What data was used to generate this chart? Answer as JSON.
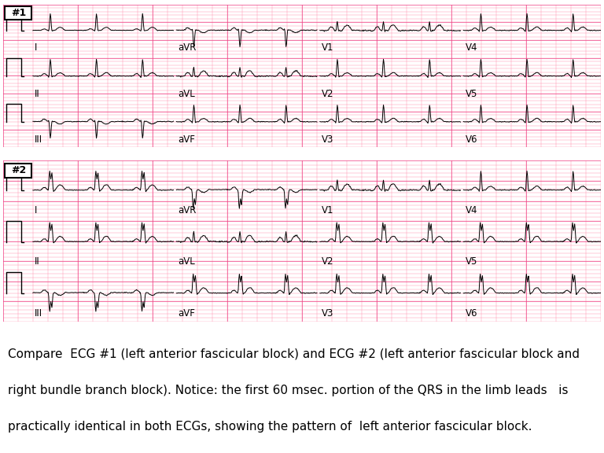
{
  "bg_color": "#FFB0C8",
  "ecg_color": "#000000",
  "grid_minor_color": "#FF85A8",
  "grid_major_color": "#EE4488",
  "white_bg": "#FFFFFF",
  "ecg1_label": "#1",
  "ecg2_label": "#2",
  "caption_line1": "Compare  ECG #1 (left anterior fascicular block) and ECG #2 (left anterior fascicular block and",
  "caption_line2": "right bundle branch block). Notice: the first 60 msec. portion of the QRS in the limb leads   is",
  "caption_line3": "practically identical in both ECGs, showing the pattern of  left anterior fascicular block.",
  "lead_labels_row1": [
    "I",
    "aVR",
    "V1",
    "V4"
  ],
  "lead_labels_row2": [
    "II",
    "aVL",
    "V2",
    "V5"
  ],
  "lead_labels_row3": [
    "III",
    "aVF",
    "V3",
    "V6"
  ],
  "caption_fontsize": 11.0,
  "label_fontsize": 8.5
}
